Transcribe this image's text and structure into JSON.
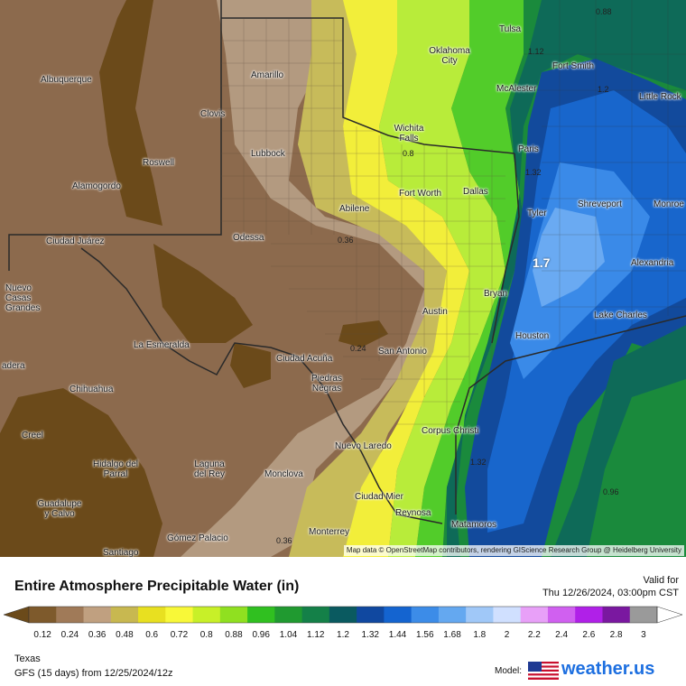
{
  "map": {
    "attribution": "Map data © OpenStreetMap contributors, rendering GIScience Research Group @ Heidelberg University",
    "cities": [
      {
        "name": "Albuquerque",
        "id": "albuquerque"
      },
      {
        "name": "Amarillo",
        "id": "amarillo"
      },
      {
        "name": "Oklahoma City",
        "id": "oklahoma-city"
      },
      {
        "name": "Tulsa",
        "id": "tulsa"
      },
      {
        "name": "Fort Smith",
        "id": "fort-smith"
      },
      {
        "name": "Little Rock",
        "id": "little-rock"
      },
      {
        "name": "McAlester",
        "id": "mcalester"
      },
      {
        "name": "Clovis",
        "id": "clovis"
      },
      {
        "name": "Wichita Falls",
        "id": "wichita-falls"
      },
      {
        "name": "Roswell",
        "id": "roswell"
      },
      {
        "name": "Lubbock",
        "id": "lubbock"
      },
      {
        "name": "Paris",
        "id": "paris"
      },
      {
        "name": "Alamogordo",
        "id": "alamogordo"
      },
      {
        "name": "Fort Worth",
        "id": "fort-worth"
      },
      {
        "name": "Dallas",
        "id": "dallas"
      },
      {
        "name": "Shreveport",
        "id": "shreveport"
      },
      {
        "name": "Monroe",
        "id": "monroe"
      },
      {
        "name": "Abilene",
        "id": "abilene"
      },
      {
        "name": "Tyler",
        "id": "tyler"
      },
      {
        "name": "Ciudad Juárez",
        "id": "ciudad-juarez"
      },
      {
        "name": "Odessa",
        "id": "odessa"
      },
      {
        "name": "Alexandria",
        "id": "alexandria"
      },
      {
        "name": "Nuevo Casas Grandes",
        "id": "nuevo-casas-grandes"
      },
      {
        "name": "Bryan",
        "id": "bryan"
      },
      {
        "name": "Austin",
        "id": "austin"
      },
      {
        "name": "Lake Charles",
        "id": "lake-charles"
      },
      {
        "name": "Houston",
        "id": "houston"
      },
      {
        "name": "La Esmeralda",
        "id": "la-esmeralda"
      },
      {
        "name": "San Antonio",
        "id": "san-antonio"
      },
      {
        "name": "Ciudad Acuña",
        "id": "ciudad-acuna"
      },
      {
        "name": "Piedras Negras",
        "id": "piedras-negras"
      },
      {
        "name": "adera",
        "id": "madera-partial"
      },
      {
        "name": "Chihuahua",
        "id": "chihuahua"
      },
      {
        "name": "Corpus Christi",
        "id": "corpus-christi"
      },
      {
        "name": "Creel",
        "id": "creel"
      },
      {
        "name": "Nuevo Laredo",
        "id": "nuevo-laredo"
      },
      {
        "name": "Hidalgo del Parral",
        "id": "hidalgo-del-parral"
      },
      {
        "name": "Laguna del Rey",
        "id": "laguna-del-rey"
      },
      {
        "name": "Monclova",
        "id": "monclova"
      },
      {
        "name": "Guadalupe y Calvo",
        "id": "guadalupe-y-calvo"
      },
      {
        "name": "Ciudad Mier",
        "id": "ciudad-mier"
      },
      {
        "name": "Reynosa",
        "id": "reynosa"
      },
      {
        "name": "Matamoros",
        "id": "matamoros"
      },
      {
        "name": "Monterrey",
        "id": "monterrey"
      },
      {
        "name": "Gómez Palacio",
        "id": "gomez-palacio"
      },
      {
        "name": "Santiago",
        "id": "santiago"
      }
    ],
    "contour_labels": [
      {
        "text": "0.88",
        "id": "c-088"
      },
      {
        "text": "1.12",
        "id": "c-112"
      },
      {
        "text": "1.2",
        "id": "c-12"
      },
      {
        "text": "0.8",
        "id": "c-08"
      },
      {
        "text": "1.32",
        "id": "c-132a"
      },
      {
        "text": "0.36",
        "id": "c-036a"
      },
      {
        "text": "0.24",
        "id": "c-024"
      },
      {
        "text": "1.32",
        "id": "c-132b"
      },
      {
        "text": "0.96",
        "id": "c-096"
      },
      {
        "text": "0.36",
        "id": "c-036b"
      }
    ],
    "peak_label": "1.7"
  },
  "footer": {
    "title": "Entire Atmosphere Precipitable Water (in)",
    "valid_label": "Valid for",
    "valid_time": "Thu 12/26/2024, 03:00pm CST",
    "region": "Texas",
    "model_run": "GFS (15 days) from  12/25/2024/12z",
    "model_label": "Model:",
    "brand": "weather.us"
  },
  "legend": {
    "ticks": [
      "0.12",
      "0.24",
      "0.36",
      "0.48",
      "0.6",
      "0.72",
      "0.8",
      "0.88",
      "0.96",
      "1.04",
      "1.12",
      "1.2",
      "1.32",
      "1.44",
      "1.56",
      "1.68",
      "1.8",
      "2",
      "2.2",
      "2.4",
      "2.6",
      "2.8",
      "3"
    ],
    "colors": [
      "#6b4a1a",
      "#7e5a2c",
      "#a07a58",
      "#c0a080",
      "#c8b850",
      "#e8e020",
      "#f8f838",
      "#c8f028",
      "#90e020",
      "#30c020",
      "#209a30",
      "#148048",
      "#0a5a60",
      "#1048a0",
      "#1464d0",
      "#3c8ce8",
      "#64a8f0",
      "#a0c8f8",
      "#d0e0ff",
      "#e8a0f8",
      "#d060f0",
      "#b020e8",
      "#7a18a0",
      "#9a9a9a",
      "#ffffff"
    ]
  }
}
